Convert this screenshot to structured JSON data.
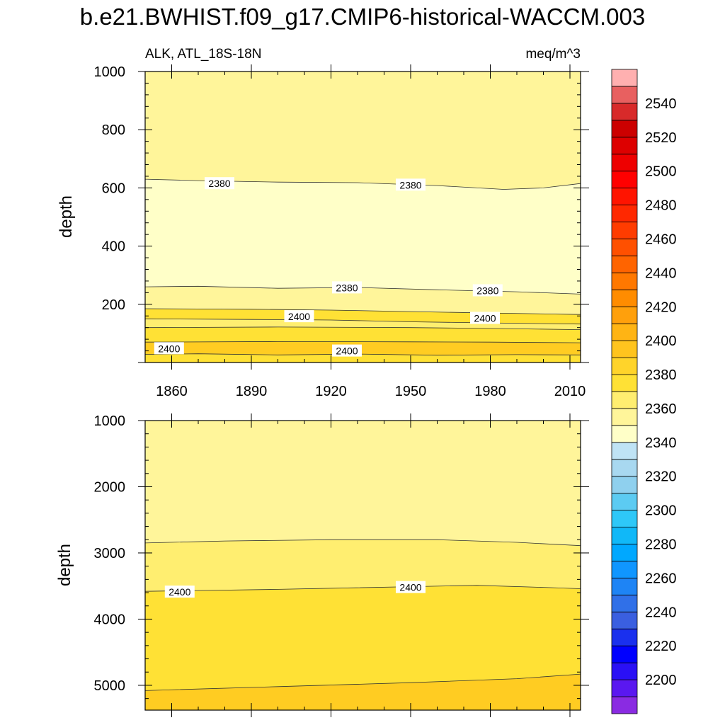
{
  "title": "b.e21.BWHIST.f09_g17.CMIP6-historical-WACCM.003",
  "chart_data": [
    {
      "type": "heatmap",
      "subtitle_left": "ALK, ATL_18S-18N",
      "subtitle_right": "meq/m^3",
      "ylabel": "depth",
      "xlim": [
        1850,
        2014
      ],
      "ylim": [
        1000,
        0
      ],
      "x_ticks": [
        1860,
        1890,
        1920,
        1950,
        1980,
        2010
      ],
      "y_ticks": [
        200,
        400,
        600,
        800,
        1000
      ],
      "bands": [
        {
          "top": [
            [
              1850,
              0
            ],
            [
              2014,
              0
            ]
          ],
          "bottom": [
            [
              1850,
              28
            ],
            [
              1870,
              30
            ],
            [
              1900,
              26
            ],
            [
              1930,
              29
            ],
            [
              1960,
              25
            ],
            [
              1990,
              27
            ],
            [
              2014,
              26
            ]
          ],
          "color": "#ffe135",
          "level": 2405
        },
        {
          "top": [
            [
              1850,
              28
            ],
            [
              1870,
              30
            ],
            [
              1900,
              26
            ],
            [
              1930,
              29
            ],
            [
              1960,
              25
            ],
            [
              1990,
              27
            ],
            [
              2014,
              26
            ]
          ],
          "bottom": [
            [
              1850,
              70
            ],
            [
              1900,
              72
            ],
            [
              1950,
              71
            ],
            [
              1980,
              70
            ],
            [
              2014,
              68
            ]
          ],
          "color": "#ffcc22",
          "level": 2415
        },
        {
          "top": [
            [
              1850,
              70
            ],
            [
              1900,
              72
            ],
            [
              1950,
              71
            ],
            [
              1980,
              70
            ],
            [
              2014,
              68
            ]
          ],
          "bottom": [
            [
              1850,
              120
            ],
            [
              1900,
              122
            ],
            [
              1950,
              120
            ],
            [
              1980,
              117
            ],
            [
              2014,
              113
            ]
          ],
          "color": "#ffe135",
          "level": 2405
        },
        {
          "top": [
            [
              1850,
              120
            ],
            [
              1900,
              122
            ],
            [
              1950,
              120
            ],
            [
              1980,
              117
            ],
            [
              2014,
              113
            ]
          ],
          "bottom": [
            [
              1850,
              150
            ],
            [
              1890,
              148
            ],
            [
              1920,
              146
            ],
            [
              1950,
              140
            ],
            [
              1980,
              136
            ],
            [
              2014,
              132
            ]
          ],
          "color": "#ffee70",
          "level": 2395
        },
        {
          "top": [
            [
              1850,
              150
            ],
            [
              1890,
              148
            ],
            [
              1920,
              146
            ],
            [
              1950,
              140
            ],
            [
              1980,
              136
            ],
            [
              2014,
              132
            ]
          ],
          "bottom": [
            [
              1850,
              185
            ],
            [
              1890,
              183
            ],
            [
              1920,
              180
            ],
            [
              1950,
              175
            ],
            [
              1980,
              170
            ],
            [
              2014,
              165
            ]
          ],
          "color": "#ffe135",
          "level": 2400
        },
        {
          "top": [
            [
              1850,
              185
            ],
            [
              1890,
              183
            ],
            [
              1920,
              180
            ],
            [
              1950,
              175
            ],
            [
              1980,
              170
            ],
            [
              2014,
              165
            ]
          ],
          "bottom": [
            [
              1850,
              260
            ],
            [
              1870,
              262
            ],
            [
              1900,
              255
            ],
            [
              1930,
              258
            ],
            [
              1960,
              250
            ],
            [
              1990,
              243
            ],
            [
              2014,
              235
            ]
          ],
          "color": "#fff59a",
          "level": 2385
        },
        {
          "top": [
            [
              1850,
              260
            ],
            [
              1870,
              262
            ],
            [
              1900,
              255
            ],
            [
              1930,
              258
            ],
            [
              1960,
              250
            ],
            [
              1990,
              243
            ],
            [
              2014,
              235
            ]
          ],
          "bottom": [
            [
              1850,
              630
            ],
            [
              1870,
              625
            ],
            [
              1900,
              620
            ],
            [
              1930,
              618
            ],
            [
              1960,
              608
            ],
            [
              1985,
              595
            ],
            [
              2000,
              600
            ],
            [
              2014,
              615
            ]
          ],
          "color": "#ffffc8",
          "level": 2378
        },
        {
          "top": [
            [
              1850,
              630
            ],
            [
              1870,
              625
            ],
            [
              1900,
              620
            ],
            [
              1930,
              618
            ],
            [
              1960,
              608
            ],
            [
              1985,
              595
            ],
            [
              2000,
              600
            ],
            [
              2014,
              615
            ]
          ],
          "bottom": [
            [
              1850,
              1000
            ],
            [
              2014,
              1000
            ]
          ],
          "color": "#fff59a",
          "level": 2385
        }
      ],
      "contour_labels": [
        {
          "text": "2400",
          "x": 1859,
          "y": 48
        },
        {
          "text": "2400",
          "x": 1926,
          "y": 40
        },
        {
          "text": "2400",
          "x": 1908,
          "y": 158
        },
        {
          "text": "2400",
          "x": 1978,
          "y": 152
        },
        {
          "text": "2380",
          "x": 1926,
          "y": 257
        },
        {
          "text": "2380",
          "x": 1979,
          "y": 247
        },
        {
          "text": "2380",
          "x": 1878,
          "y": 615
        },
        {
          "text": "2380",
          "x": 1950,
          "y": 610
        }
      ]
    },
    {
      "type": "heatmap",
      "ylabel": "depth",
      "xlim": [
        1850,
        2014
      ],
      "ylim": [
        1000,
        5375
      ],
      "y_ticks": [
        1000,
        2000,
        3000,
        4000,
        5000
      ],
      "bands": [
        {
          "top": [
            [
              1850,
              1000
            ],
            [
              2014,
              1000
            ]
          ],
          "bottom": [
            [
              1850,
              2850
            ],
            [
              1880,
              2820
            ],
            [
              1920,
              2800
            ],
            [
              1960,
              2800
            ],
            [
              1990,
              2840
            ],
            [
              2014,
              2890
            ]
          ],
          "color": "#fff59a",
          "level": 2385
        },
        {
          "top": [
            [
              1850,
              2850
            ],
            [
              1880,
              2820
            ],
            [
              1920,
              2800
            ],
            [
              1960,
              2800
            ],
            [
              1990,
              2840
            ],
            [
              2014,
              2890
            ]
          ],
          "bottom": [
            [
              1850,
              3580
            ],
            [
              1900,
              3550
            ],
            [
              1950,
              3510
            ],
            [
              1975,
              3490
            ],
            [
              2000,
              3520
            ],
            [
              2014,
              3540
            ]
          ],
          "color": "#ffee70",
          "level": 2395
        },
        {
          "top": [
            [
              1850,
              3580
            ],
            [
              1900,
              3550
            ],
            [
              1950,
              3510
            ],
            [
              1975,
              3490
            ],
            [
              2000,
              3520
            ],
            [
              2014,
              3540
            ]
          ],
          "bottom": [
            [
              1850,
              5080
            ],
            [
              1900,
              5020
            ],
            [
              1950,
              4960
            ],
            [
              1990,
              4900
            ],
            [
              2014,
              4830
            ]
          ],
          "color": "#ffe135",
          "level": 2405
        },
        {
          "top": [
            [
              1850,
              5080
            ],
            [
              1900,
              5020
            ],
            [
              1950,
              4960
            ],
            [
              1990,
              4900
            ],
            [
              2014,
              4830
            ]
          ],
          "bottom": [
            [
              1850,
              5375
            ],
            [
              2014,
              5375
            ]
          ],
          "color": "#ffcc22",
          "level": 2415
        }
      ],
      "contour_labels": [
        {
          "text": "2400",
          "x": 1863,
          "y": 3590
        },
        {
          "text": "2400",
          "x": 1950,
          "y": 3520
        }
      ]
    }
  ],
  "colorbar": {
    "labels": [
      "2200",
      "2220",
      "2240",
      "2260",
      "2280",
      "2300",
      "2320",
      "2340",
      "2360",
      "2380",
      "2400",
      "2420",
      "2440",
      "2460",
      "2480",
      "2500",
      "2520",
      "2540"
    ],
    "colors": [
      "#8a2be2",
      "#5a18f0",
      "#2a10f5",
      "#0000ff",
      "#1a30ee",
      "#3a5fe0",
      "#3070e8",
      "#1e84f5",
      "#1096ff",
      "#00a8ff",
      "#10b8f8",
      "#2ec8f8",
      "#5ccbf2",
      "#8fd0ee",
      "#a8d8f0",
      "#bfe3f5",
      "#ffffc8",
      "#fff59a",
      "#ffee70",
      "#ffe135",
      "#ffd42a",
      "#ffc41e",
      "#ffb414",
      "#ffa00c",
      "#ff8c00",
      "#ff7800",
      "#ff6400",
      "#ff5000",
      "#ff3c00",
      "#ff2800",
      "#ff1400",
      "#ff0000",
      "#ee0000",
      "#dd0000",
      "#cc0000",
      "#d82a2a",
      "#e86060",
      "#ffb0b0"
    ]
  }
}
